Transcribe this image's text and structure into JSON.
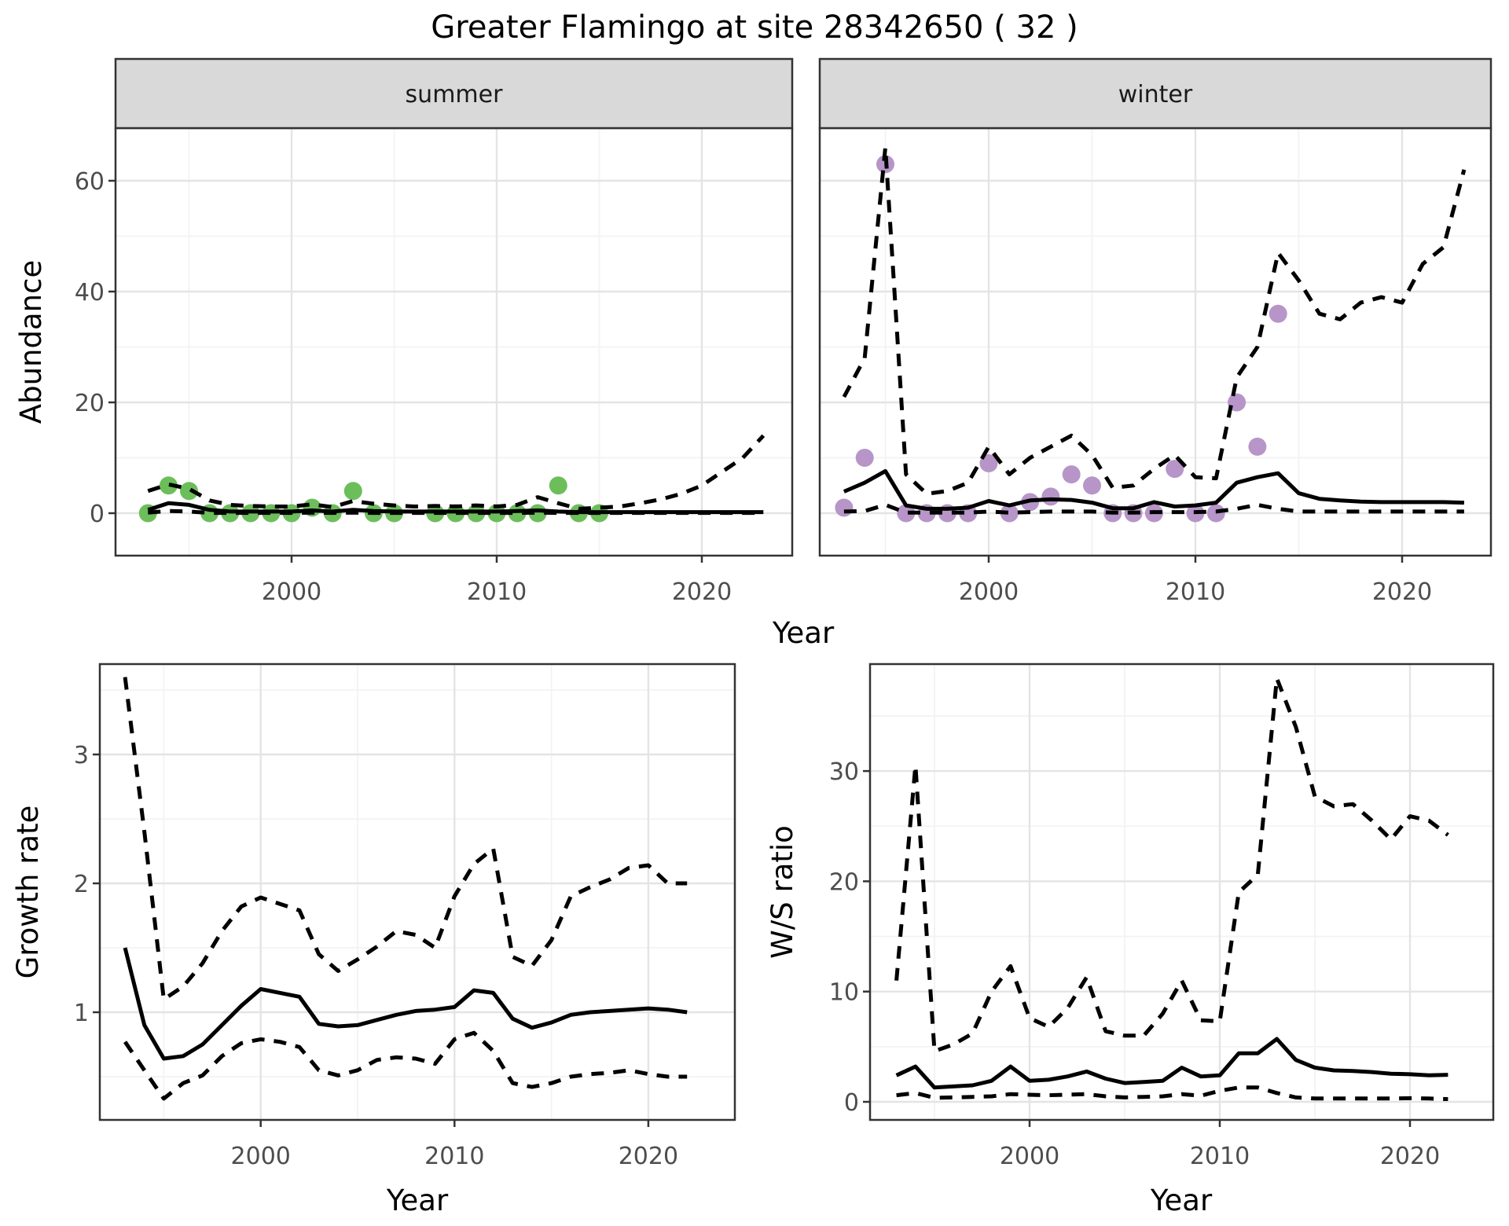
{
  "title": "Greater Flamingo at site 28342650 ( 32 )",
  "colors": {
    "summer_dot": "#6CBE5B",
    "winter_dot": "#B795C8",
    "line": "#000000",
    "strip_bg": "#D9D9D9",
    "strip_text": "#1A1A1A",
    "panel_border": "#333333",
    "grid_major": "#E4E4E4",
    "grid_minor": "#F3F3F3",
    "tick_label": "#4D4D4D",
    "axis_title": "#000000",
    "background": "#FFFFFF"
  },
  "chart_data": [
    {
      "type": "line",
      "facet_label": "summer",
      "xlabel": "Year",
      "ylabel": "Abundance",
      "x_ticks": [
        2000,
        2010,
        2020
      ],
      "x_minor": [
        1995,
        2005,
        2015
      ],
      "y_ticks": [
        0,
        20,
        40,
        60
      ],
      "y_minor": [
        10,
        30,
        50
      ],
      "xlim": [
        1991.4,
        2023.6
      ],
      "ylim": [
        -7.7,
        69.6
      ],
      "grid": true,
      "legend_position": "none",
      "series": {
        "mean": {
          "style": "solid",
          "x0": 1993,
          "values": [
            0.6,
            1.8,
            1.5,
            0.6,
            0.3,
            0.3,
            0.3,
            0.3,
            0.5,
            0.3,
            0.6,
            0.4,
            0.3,
            0.3,
            0.3,
            0.3,
            0.3,
            0.3,
            0.4,
            0.5,
            0.3,
            0.2,
            0.2,
            0.2,
            0.2,
            0.2,
            0.2,
            0.2,
            0.2,
            0.2,
            0.2
          ]
        },
        "upper": {
          "style": "dashed",
          "x0": 1993,
          "values": [
            4.0,
            5.2,
            4.4,
            2.3,
            1.5,
            1.3,
            1.2,
            1.2,
            1.6,
            1.1,
            2.2,
            1.7,
            1.4,
            1.2,
            1.3,
            1.2,
            1.4,
            1.2,
            1.5,
            2.9,
            1.8,
            0.8,
            1.0,
            1.2,
            1.8,
            2.5,
            3.5,
            5.0,
            7.5,
            10.0,
            14.0
          ]
        },
        "lower": {
          "style": "dashed",
          "x0": 1993,
          "values": [
            0.1,
            0.4,
            0.3,
            0.05,
            0.05,
            0.05,
            0.05,
            0.05,
            0.1,
            0.05,
            0.1,
            0.05,
            0.05,
            0.05,
            0.05,
            0.05,
            0.05,
            0.05,
            0.05,
            0.1,
            0.05,
            0.05,
            0.05,
            0.05,
            0.05,
            0.05,
            0.05,
            0.05,
            0.05,
            0.05,
            0.05
          ]
        }
      },
      "points": {
        "color_key": "summer_dot",
        "years": [
          1993,
          1994,
          1995,
          1996,
          1997,
          1998,
          1999,
          2000,
          2001,
          2002,
          2003,
          2004,
          2005,
          2007,
          2008,
          2009,
          2010,
          2011,
          2012,
          2013,
          2014,
          2015
        ],
        "values": [
          0,
          5,
          4,
          0,
          0,
          0,
          0,
          0,
          1,
          0,
          4,
          0,
          0,
          0,
          0,
          0,
          0,
          0,
          0,
          5,
          0,
          0
        ]
      }
    },
    {
      "type": "line",
      "facet_label": "winter",
      "xlabel": "Year",
      "ylabel": "Abundance",
      "x_ticks": [
        2000,
        2010,
        2020
      ],
      "x_minor": [
        1995,
        2005,
        2015
      ],
      "y_ticks": [
        0,
        20,
        40,
        60
      ],
      "y_minor": [
        10,
        30,
        50
      ],
      "xlim": [
        1991.8,
        2024.3
      ],
      "ylim": [
        -7.7,
        69.6
      ],
      "grid": true,
      "legend_position": "none",
      "series": {
        "mean": {
          "style": "solid",
          "x0": 1993,
          "values": [
            3.9,
            5.5,
            7.6,
            1.4,
            0.8,
            0.8,
            1.0,
            2.2,
            1.4,
            2.3,
            2.5,
            2.4,
            1.9,
            0.9,
            0.9,
            2.0,
            1.2,
            1.4,
            1.9,
            5.5,
            6.5,
            7.2,
            3.6,
            2.6,
            2.3,
            2.1,
            2.0,
            2.0,
            2.0,
            2.0,
            1.9
          ]
        },
        "upper": {
          "style": "dashed",
          "x0": 1993,
          "values": [
            21,
            28,
            66,
            7,
            3.5,
            4,
            5.5,
            12,
            7,
            10,
            12,
            14,
            10.5,
            4.6,
            5,
            8,
            10.5,
            6.5,
            6.3,
            24.5,
            30,
            47,
            42,
            36,
            35,
            38,
            39,
            38,
            45,
            48,
            62
          ]
        },
        "lower": {
          "style": "dashed",
          "x0": 1993,
          "values": [
            0.3,
            0.4,
            1.5,
            0.1,
            0.1,
            0.1,
            0.1,
            0.3,
            0.1,
            0.2,
            0.3,
            0.3,
            0.3,
            0.1,
            0.1,
            0.2,
            0.2,
            0.2,
            0.3,
            0.8,
            1.5,
            0.8,
            0.3,
            0.3,
            0.3,
            0.3,
            0.3,
            0.3,
            0.3,
            0.3,
            0.3
          ]
        }
      },
      "points": {
        "color_key": "winter_dot",
        "years": [
          1993,
          1994,
          1995,
          1996,
          1997,
          1998,
          1999,
          2000,
          2001,
          2002,
          2003,
          2004,
          2005,
          2006,
          2007,
          2008,
          2009,
          2010,
          2011,
          2012,
          2013,
          2014
        ],
        "values": [
          1,
          10,
          63,
          0,
          0,
          0,
          0,
          9,
          0,
          2,
          3,
          7,
          5,
          0,
          0,
          0,
          8,
          0,
          0,
          20,
          12,
          36
        ]
      }
    },
    {
      "type": "line",
      "facet_label": null,
      "xlabel": "Year",
      "ylabel": "Growth rate",
      "x_ticks": [
        2000,
        2010,
        2020
      ],
      "x_minor": [
        1995,
        2005,
        2015
      ],
      "y_ticks": [
        1,
        2,
        3
      ],
      "y_minor": [
        0.5,
        1.5,
        2.5,
        3.5
      ],
      "xlim": [
        1991.7,
        2024.5
      ],
      "ylim": [
        0.16,
        3.7
      ],
      "grid": true,
      "legend_position": "none",
      "series": {
        "mean": {
          "style": "solid",
          "x0": 1993,
          "values": [
            1.5,
            0.9,
            0.64,
            0.66,
            0.75,
            0.9,
            1.05,
            1.18,
            1.15,
            1.12,
            0.91,
            0.89,
            0.9,
            0.94,
            0.98,
            1.01,
            1.02,
            1.04,
            1.17,
            1.15,
            0.95,
            0.88,
            0.92,
            0.98,
            1.0,
            1.01,
            1.02,
            1.03,
            1.02,
            1.0
          ]
        },
        "upper": {
          "style": "dashed",
          "x0": 1993,
          "values": [
            3.6,
            2.4,
            1.1,
            1.2,
            1.38,
            1.63,
            1.82,
            1.89,
            1.84,
            1.79,
            1.45,
            1.32,
            1.41,
            1.51,
            1.63,
            1.6,
            1.5,
            1.9,
            2.15,
            2.27,
            1.43,
            1.36,
            1.56,
            1.9,
            1.97,
            2.03,
            2.12,
            2.14,
            2.0,
            2.0
          ]
        },
        "lower": {
          "style": "dashed",
          "x0": 1993,
          "values": [
            0.77,
            0.55,
            0.33,
            0.45,
            0.51,
            0.66,
            0.76,
            0.79,
            0.77,
            0.73,
            0.55,
            0.51,
            0.55,
            0.63,
            0.65,
            0.64,
            0.6,
            0.79,
            0.84,
            0.7,
            0.45,
            0.42,
            0.45,
            0.5,
            0.52,
            0.53,
            0.55,
            0.52,
            0.5,
            0.5
          ]
        }
      },
      "points": null
    },
    {
      "type": "line",
      "facet_label": null,
      "xlabel": "Year",
      "ylabel": "W/S ratio",
      "x_ticks": [
        2000,
        2010,
        2020
      ],
      "x_minor": [
        1995,
        2005,
        2015
      ],
      "y_ticks": [
        0,
        10,
        20,
        30
      ],
      "y_minor": [
        5,
        15,
        25,
        35
      ],
      "xlim": [
        1991.6,
        2024.4
      ],
      "ylim": [
        -1.6,
        39.7
      ],
      "grid": true,
      "legend_position": "none",
      "series": {
        "mean": {
          "style": "solid",
          "x0": 1993,
          "values": [
            2.4,
            3.2,
            1.3,
            1.4,
            1.5,
            1.9,
            3.2,
            1.9,
            2.0,
            2.3,
            2.75,
            2.1,
            1.7,
            1.8,
            1.9,
            3.1,
            2.3,
            2.4,
            4.4,
            4.4,
            5.7,
            3.8,
            3.1,
            2.85,
            2.8,
            2.7,
            2.55,
            2.5,
            2.4,
            2.45
          ]
        },
        "upper": {
          "style": "dashed",
          "x0": 1993,
          "values": [
            11,
            30.5,
            4.6,
            5.2,
            6.2,
            10,
            12.3,
            7.6,
            6.8,
            8.5,
            11.3,
            6.4,
            6.0,
            6.0,
            8.0,
            11.0,
            7.4,
            7.3,
            19.0,
            20.6,
            38.4,
            34.0,
            27.7,
            26.8,
            27.0,
            25.5,
            23.8,
            25.9,
            25.5,
            24.2
          ]
        },
        "lower": {
          "style": "dashed",
          "x0": 1993,
          "values": [
            0.6,
            0.8,
            0.36,
            0.4,
            0.45,
            0.5,
            0.7,
            0.64,
            0.6,
            0.65,
            0.7,
            0.5,
            0.4,
            0.45,
            0.5,
            0.7,
            0.55,
            1.0,
            1.3,
            1.3,
            0.8,
            0.4,
            0.3,
            0.3,
            0.3,
            0.3,
            0.3,
            0.33,
            0.3,
            0.25
          ]
        }
      },
      "points": null
    }
  ]
}
